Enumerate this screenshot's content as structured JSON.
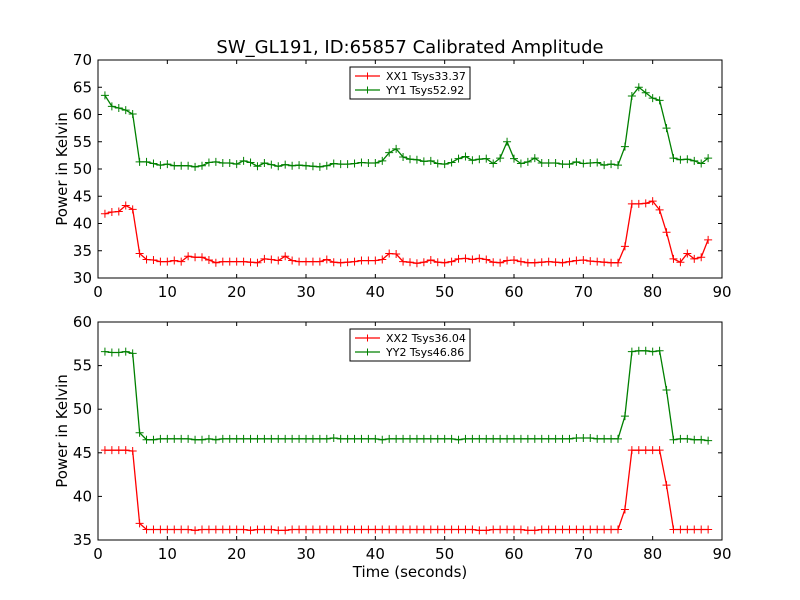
{
  "title": "SW_GL191, ID:65857 Calibrated Amplitude",
  "xlabel": "Time (seconds)",
  "colors": {
    "red": "#ff0000",
    "green": "#008000"
  },
  "chart_data": [
    {
      "type": "line",
      "ylabel": "Power in Kelvin",
      "xlim": [
        0,
        90
      ],
      "ylim": [
        30,
        70
      ],
      "xticks": [
        0,
        10,
        20,
        30,
        40,
        50,
        60,
        70,
        80,
        90
      ],
      "yticks": [
        30,
        35,
        40,
        45,
        50,
        55,
        60,
        65,
        70
      ],
      "grid": false,
      "legend_position": "top-center",
      "marker": "+",
      "series": [
        {
          "name": "XX1 Tsys33.37",
          "color": "#ff0000",
          "x": [
            1,
            2,
            3,
            4,
            5,
            6,
            7,
            8,
            9,
            10,
            11,
            12,
            13,
            14,
            15,
            16,
            17,
            18,
            19,
            20,
            21,
            22,
            23,
            24,
            25,
            26,
            27,
            28,
            29,
            30,
            31,
            32,
            33,
            34,
            35,
            36,
            37,
            38,
            39,
            40,
            41,
            42,
            43,
            44,
            45,
            46,
            47,
            48,
            49,
            50,
            51,
            52,
            53,
            54,
            55,
            56,
            57,
            58,
            59,
            60,
            61,
            62,
            63,
            64,
            65,
            66,
            67,
            68,
            69,
            70,
            71,
            72,
            73,
            74,
            75,
            76,
            77,
            78,
            79,
            80,
            81,
            82,
            83,
            84,
            85,
            86,
            87,
            88
          ],
          "y": [
            41.8,
            42.1,
            42.2,
            43.3,
            42.6,
            34.5,
            33.4,
            33.3,
            33.0,
            33.0,
            33.2,
            33.0,
            34.0,
            33.8,
            33.8,
            33.3,
            32.8,
            33.0,
            33.0,
            33.0,
            33.0,
            32.9,
            32.8,
            33.5,
            33.4,
            33.2,
            34.0,
            33.2,
            33.0,
            33.0,
            33.0,
            33.0,
            33.4,
            32.9,
            32.8,
            32.9,
            33.0,
            33.2,
            33.2,
            33.2,
            33.4,
            34.5,
            34.4,
            33.0,
            32.9,
            32.7,
            32.9,
            33.3,
            32.9,
            32.8,
            33.0,
            33.5,
            33.6,
            33.4,
            33.6,
            33.4,
            32.9,
            32.8,
            33.2,
            33.3,
            33.0,
            32.8,
            32.8,
            32.9,
            33.0,
            32.9,
            32.8,
            33.0,
            33.2,
            33.3,
            33.1,
            33.0,
            32.9,
            32.8,
            32.8,
            35.8,
            43.6,
            43.6,
            43.7,
            44.1,
            42.5,
            38.4,
            33.5,
            32.9,
            34.5,
            33.5,
            33.8,
            37.0
          ]
        },
        {
          "name": "YY1 Tsys52.92",
          "color": "#008000",
          "x": [
            1,
            2,
            3,
            4,
            5,
            6,
            7,
            8,
            9,
            10,
            11,
            12,
            13,
            14,
            15,
            16,
            17,
            18,
            19,
            20,
            21,
            22,
            23,
            24,
            25,
            26,
            27,
            28,
            29,
            30,
            31,
            32,
            33,
            34,
            35,
            36,
            37,
            38,
            39,
            40,
            41,
            42,
            43,
            44,
            45,
            46,
            47,
            48,
            49,
            50,
            51,
            52,
            53,
            54,
            55,
            56,
            57,
            58,
            59,
            60,
            61,
            62,
            63,
            64,
            65,
            66,
            67,
            68,
            69,
            70,
            71,
            72,
            73,
            74,
            75,
            76,
            77,
            78,
            79,
            80,
            81,
            82,
            83,
            84,
            85,
            86,
            87,
            88
          ],
          "y": [
            63.5,
            61.5,
            61.2,
            60.8,
            60.1,
            51.3,
            51.3,
            51.0,
            50.7,
            50.9,
            50.6,
            50.6,
            50.6,
            50.4,
            50.6,
            51.2,
            51.3,
            51.1,
            51.1,
            50.9,
            51.5,
            51.2,
            50.5,
            51.1,
            50.8,
            50.5,
            50.8,
            50.6,
            50.7,
            50.6,
            50.5,
            50.4,
            50.6,
            51.0,
            50.9,
            50.9,
            51.0,
            51.2,
            51.1,
            51.1,
            51.5,
            53.0,
            53.7,
            52.2,
            51.8,
            51.7,
            51.4,
            51.5,
            51.0,
            50.9,
            51.2,
            51.9,
            52.3,
            51.6,
            51.8,
            51.9,
            51.0,
            52.0,
            55.0,
            51.9,
            51.0,
            51.3,
            52.0,
            51.1,
            51.1,
            51.1,
            50.9,
            50.9,
            51.3,
            51.0,
            51.1,
            51.2,
            50.7,
            50.9,
            50.7,
            54.1,
            63.4,
            65.0,
            64.0,
            63.0,
            62.6,
            57.5,
            52.0,
            51.7,
            51.8,
            51.5,
            51.0,
            52.0
          ]
        }
      ]
    },
    {
      "type": "line",
      "ylabel": "Power in Kelvin",
      "xlim": [
        0,
        90
      ],
      "ylim": [
        35,
        60
      ],
      "xticks": [
        0,
        10,
        20,
        30,
        40,
        50,
        60,
        70,
        80,
        90
      ],
      "yticks": [
        35,
        40,
        45,
        50,
        55,
        60
      ],
      "grid": false,
      "legend_position": "top-center",
      "marker": "+",
      "series": [
        {
          "name": "XX2 Tsys36.04",
          "color": "#ff0000",
          "x": [
            1,
            2,
            3,
            4,
            5,
            6,
            7,
            8,
            9,
            10,
            11,
            12,
            13,
            14,
            15,
            16,
            17,
            18,
            19,
            20,
            21,
            22,
            23,
            24,
            25,
            26,
            27,
            28,
            29,
            30,
            31,
            32,
            33,
            34,
            35,
            36,
            37,
            38,
            39,
            40,
            41,
            42,
            43,
            44,
            45,
            46,
            47,
            48,
            49,
            50,
            51,
            52,
            53,
            54,
            55,
            56,
            57,
            58,
            59,
            60,
            61,
            62,
            63,
            64,
            65,
            66,
            67,
            68,
            69,
            70,
            71,
            72,
            73,
            74,
            75,
            76,
            77,
            78,
            79,
            80,
            81,
            82,
            83,
            84,
            85,
            86,
            87,
            88
          ],
          "y": [
            45.3,
            45.3,
            45.3,
            45.3,
            45.2,
            36.9,
            36.2,
            36.2,
            36.2,
            36.2,
            36.2,
            36.2,
            36.2,
            36.1,
            36.2,
            36.2,
            36.2,
            36.2,
            36.2,
            36.2,
            36.2,
            36.1,
            36.2,
            36.2,
            36.2,
            36.1,
            36.1,
            36.2,
            36.2,
            36.2,
            36.2,
            36.2,
            36.2,
            36.2,
            36.2,
            36.2,
            36.2,
            36.2,
            36.2,
            36.2,
            36.2,
            36.2,
            36.2,
            36.2,
            36.2,
            36.2,
            36.2,
            36.2,
            36.2,
            36.2,
            36.2,
            36.2,
            36.2,
            36.2,
            36.1,
            36.1,
            36.2,
            36.2,
            36.2,
            36.2,
            36.2,
            36.1,
            36.1,
            36.2,
            36.2,
            36.2,
            36.2,
            36.2,
            36.2,
            36.2,
            36.2,
            36.2,
            36.2,
            36.2,
            36.2,
            38.5,
            45.3,
            45.3,
            45.3,
            45.3,
            45.3,
            41.3,
            36.2,
            36.2,
            36.2,
            36.2,
            36.2,
            36.2
          ]
        },
        {
          "name": "YY2 Tsys46.86",
          "color": "#008000",
          "x": [
            1,
            2,
            3,
            4,
            5,
            6,
            7,
            8,
            9,
            10,
            11,
            12,
            13,
            14,
            15,
            16,
            17,
            18,
            19,
            20,
            21,
            22,
            23,
            24,
            25,
            26,
            27,
            28,
            29,
            30,
            31,
            32,
            33,
            34,
            35,
            36,
            37,
            38,
            39,
            40,
            41,
            42,
            43,
            44,
            45,
            46,
            47,
            48,
            49,
            50,
            51,
            52,
            53,
            54,
            55,
            56,
            57,
            58,
            59,
            60,
            61,
            62,
            63,
            64,
            65,
            66,
            67,
            68,
            69,
            70,
            71,
            72,
            73,
            74,
            75,
            76,
            77,
            78,
            79,
            80,
            81,
            82,
            83,
            84,
            85,
            86,
            87,
            88
          ],
          "y": [
            56.6,
            56.5,
            56.5,
            56.6,
            56.4,
            47.3,
            46.5,
            46.5,
            46.6,
            46.6,
            46.6,
            46.6,
            46.6,
            46.5,
            46.5,
            46.6,
            46.5,
            46.6,
            46.6,
            46.6,
            46.6,
            46.6,
            46.6,
            46.6,
            46.6,
            46.6,
            46.6,
            46.6,
            46.6,
            46.6,
            46.6,
            46.6,
            46.6,
            46.7,
            46.6,
            46.6,
            46.6,
            46.6,
            46.6,
            46.6,
            46.5,
            46.6,
            46.6,
            46.6,
            46.6,
            46.6,
            46.6,
            46.6,
            46.6,
            46.6,
            46.6,
            46.5,
            46.6,
            46.6,
            46.6,
            46.6,
            46.6,
            46.6,
            46.6,
            46.6,
            46.6,
            46.6,
            46.6,
            46.6,
            46.6,
            46.6,
            46.6,
            46.6,
            46.7,
            46.7,
            46.7,
            46.6,
            46.6,
            46.6,
            46.6,
            49.2,
            56.6,
            56.7,
            56.7,
            56.6,
            56.7,
            52.2,
            46.5,
            46.6,
            46.6,
            46.5,
            46.5,
            46.4
          ]
        }
      ]
    }
  ]
}
